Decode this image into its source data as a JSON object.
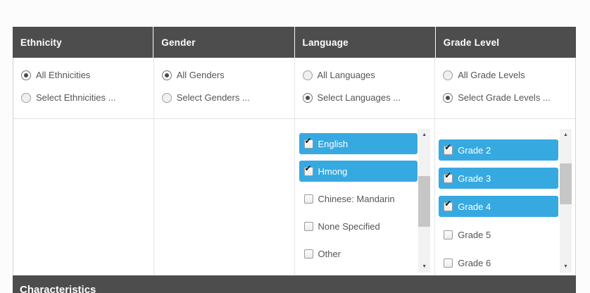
{
  "colors": {
    "header_bg": "#4d4d4d",
    "accent_blue": "#36a9e1",
    "text": "#555555",
    "selected_item_text": "#ffffff",
    "page_bg": "#fcfcfc"
  },
  "icons": {
    "checkmark": "✔",
    "scroll_up": "▲",
    "scroll_down": "▼"
  },
  "filters": {
    "columns": [
      {
        "header": "Ethnicity",
        "radios": [
          {
            "label": "All Ethnicities",
            "selected": true
          },
          {
            "label": "Select Ethnicities ...",
            "selected": false
          }
        ]
      },
      {
        "header": "Gender",
        "radios": [
          {
            "label": "All Genders",
            "selected": true
          },
          {
            "label": "Select Genders ...",
            "selected": false
          }
        ]
      },
      {
        "header": "Language",
        "radios": [
          {
            "label": "All Languages",
            "selected": false
          },
          {
            "label": "Select Languages ...",
            "selected": true
          }
        ],
        "list": {
          "items": [
            {
              "label": "English",
              "checked": true
            },
            {
              "label": "Hmong",
              "checked": true
            },
            {
              "label": "Chinese: Mandarin",
              "checked": false
            },
            {
              "label": "None Specified",
              "checked": false
            },
            {
              "label": "Other",
              "checked": false
            }
          ]
        }
      },
      {
        "header": "Grade Level",
        "radios": [
          {
            "label": "All Grade Levels",
            "selected": false
          },
          {
            "label": "Select Grade Levels ...",
            "selected": true
          }
        ],
        "list": {
          "items": [
            {
              "label": "Grade 2",
              "checked": true
            },
            {
              "label": "Grade 3",
              "checked": true
            },
            {
              "label": "Grade 4",
              "checked": true
            },
            {
              "label": "Grade 5",
              "checked": false
            },
            {
              "label": "Grade 6",
              "checked": false
            }
          ]
        }
      }
    ]
  },
  "characteristics": {
    "label": "Characteristics"
  }
}
